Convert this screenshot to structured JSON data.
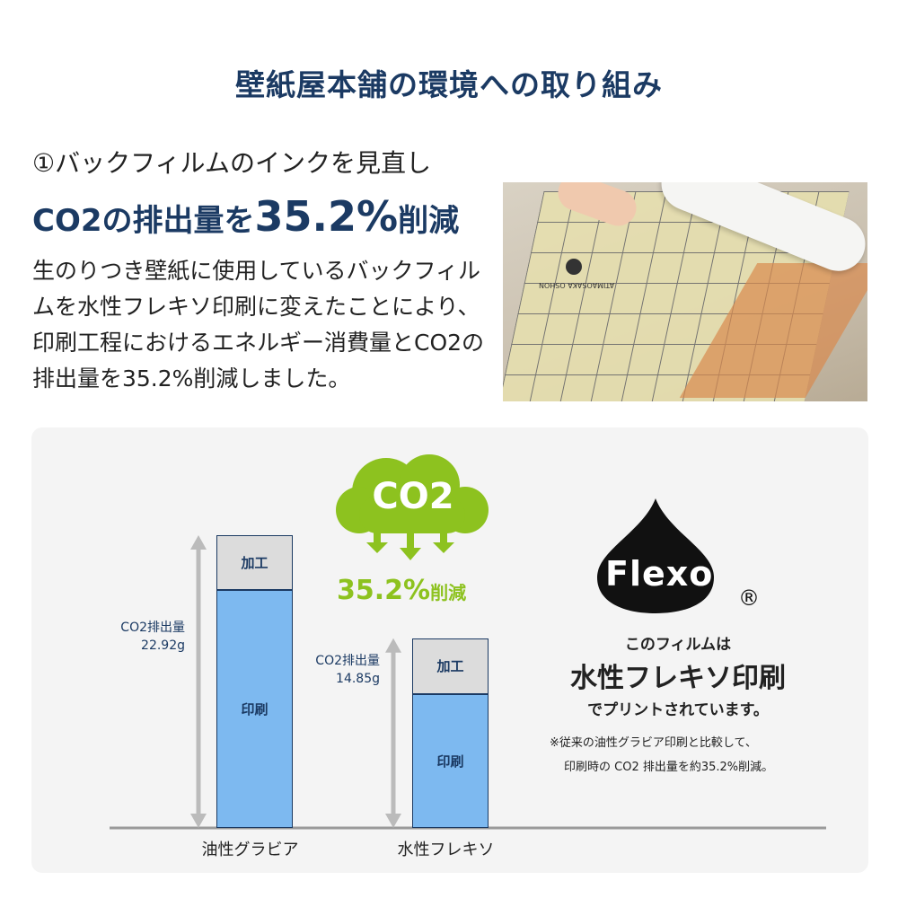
{
  "title": "壁紙屋本舗の環境への取り組み",
  "section": {
    "subtitle": "①バックフィルムのインクを見直し",
    "headline_pre": "CO2の排出量を",
    "headline_value": "35.2%",
    "headline_post": "削減",
    "body": "生のりつき壁紙に使用しているバックフィルムを水性フレキソ印刷に変えたことにより、印刷工程におけるエネルギー消費量とCO2の排出量を35.2%削減しました。"
  },
  "photo": {
    "film_text": "ATIMAOSAKA OSHON"
  },
  "badge": {
    "cloud_text": "CO2",
    "reduction": "35.2%",
    "reduction_suffix": "削減",
    "color": "#8dc21f"
  },
  "flexo": {
    "logo": "Flexo",
    "registered": "®",
    "line1": "このフィルムは",
    "line2": "水性フレキソ印刷",
    "line3": "でプリントされています。",
    "note1": "※従来の油性グラビア印刷と比較して、",
    "note2": "印刷時の CO2 排出量を約35.2%削減。"
  },
  "chart_data": {
    "type": "bar",
    "stacked": true,
    "categories": [
      "油性グラビア",
      "水性フレキソ"
    ],
    "series": [
      {
        "name": "印刷",
        "values": [
          18.63,
          10.49
        ],
        "color": "#7db9f0"
      },
      {
        "name": "加工",
        "values": [
          4.29,
          4.36
        ],
        "color": "#dcdcdc"
      }
    ],
    "totals": [
      22.92,
      14.85
    ],
    "total_labels": [
      "CO2排出量\n22.92g",
      "CO2排出量\n14.85g"
    ],
    "total_label_lines": [
      [
        "CO2排出量",
        "22.92g"
      ],
      [
        "CO2排出量",
        "14.85g"
      ]
    ],
    "ylim": [
      0,
      22.92
    ],
    "grid": false
  }
}
